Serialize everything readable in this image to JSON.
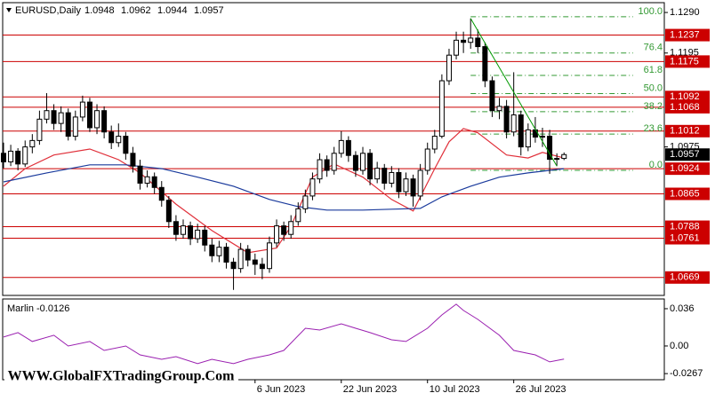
{
  "chart_data": {
    "type": "candlestick",
    "symbol": "EURUSD,Daily",
    "categories": [
      null,
      null,
      null,
      null,
      null,
      null,
      null,
      null,
      null,
      null,
      null,
      null,
      null,
      null,
      null,
      null,
      null,
      null,
      null,
      null,
      null,
      null,
      null,
      null,
      null,
      null,
      null,
      null,
      null,
      null,
      null,
      null,
      null,
      null,
      null,
      "6 Jun 2023",
      null,
      null,
      null,
      null,
      null,
      null,
      null,
      null,
      null,
      null,
      null,
      "22 Jun 2023",
      null,
      null,
      null,
      null,
      null,
      null,
      null,
      null,
      null,
      null,
      null,
      "10 Jul 2023",
      null,
      null,
      null,
      null,
      null,
      null,
      null,
      null,
      null,
      null,
      null,
      "26 Jul 2023",
      null,
      null,
      null,
      null,
      null,
      null,
      null
    ],
    "candles": [
      [
        1.096,
        1.0985,
        1.0925,
        1.094
      ],
      [
        1.094,
        1.098,
        1.093,
        1.0965
      ],
      [
        1.0965,
        1.0972,
        1.092,
        1.0935
      ],
      [
        1.0935,
        1.099,
        1.0928,
        1.0975
      ],
      [
        1.0975,
        1.1005,
        1.096,
        1.099
      ],
      [
        1.099,
        1.106,
        1.098,
        1.104
      ],
      [
        1.104,
        1.1101,
        1.103,
        1.106
      ],
      [
        1.106,
        1.1075,
        1.1015,
        1.103
      ],
      [
        1.103,
        1.107,
        1.101,
        1.1055
      ],
      [
        1.1055,
        1.1065,
        1.099,
        1.1
      ],
      [
        1.1,
        1.106,
        1.099,
        1.1045
      ],
      [
        1.1045,
        1.1095,
        1.1035,
        1.108
      ],
      [
        1.108,
        1.109,
        1.101,
        1.102
      ],
      [
        1.102,
        1.1075,
        1.1005,
        1.106
      ],
      [
        1.106,
        1.107,
        1.0995,
        1.101
      ],
      [
        1.101,
        1.1025,
        1.097,
        1.0985
      ],
      [
        1.0985,
        1.103,
        1.0975,
        1.1
      ],
      [
        1.1,
        1.101,
        1.0945,
        1.096
      ],
      [
        1.096,
        1.0975,
        1.0915,
        1.093
      ],
      [
        1.093,
        1.0945,
        1.0875,
        1.089
      ],
      [
        1.089,
        1.092,
        1.088,
        1.0905
      ],
      [
        1.0905,
        1.0915,
        1.0865,
        1.088
      ],
      [
        1.088,
        1.0895,
        1.0835,
        1.085
      ],
      [
        1.085,
        1.086,
        1.0785,
        1.08
      ],
      [
        1.08,
        1.0815,
        1.0755,
        1.077
      ],
      [
        1.077,
        1.0805,
        1.076,
        1.079
      ],
      [
        1.079,
        1.08,
        1.0745,
        1.076
      ],
      [
        1.076,
        1.0795,
        1.075,
        1.078
      ],
      [
        1.078,
        1.079,
        1.073,
        1.0745
      ],
      [
        1.0745,
        1.076,
        1.0705,
        1.072
      ],
      [
        1.072,
        1.0755,
        1.0705,
        1.074
      ],
      [
        1.074,
        1.075,
        1.069,
        1.0705
      ],
      [
        1.0705,
        1.0715,
        1.064,
        1.069
      ],
      [
        1.069,
        1.075,
        1.068,
        1.0735
      ],
      [
        1.0735,
        1.0745,
        1.0695,
        1.071
      ],
      [
        1.071,
        1.0725,
        1.0675,
        1.07
      ],
      [
        1.07,
        1.0715,
        1.0665,
        1.069
      ],
      [
        1.069,
        1.0765,
        1.068,
        1.075
      ],
      [
        1.075,
        1.0805,
        1.074,
        1.079
      ],
      [
        1.079,
        1.08,
        1.0755,
        1.077
      ],
      [
        1.077,
        1.0815,
        1.076,
        1.08
      ],
      [
        1.08,
        1.0845,
        1.079,
        1.083
      ],
      [
        1.083,
        1.0875,
        1.082,
        1.086
      ],
      [
        1.086,
        1.0915,
        1.085,
        1.09
      ],
      [
        1.09,
        1.096,
        1.089,
        1.0945
      ],
      [
        1.0945,
        1.0955,
        1.0905,
        1.092
      ],
      [
        1.092,
        1.0975,
        1.091,
        1.096
      ],
      [
        1.096,
        1.1012,
        1.095,
        1.099
      ],
      [
        1.099,
        1.1,
        1.094,
        1.0955
      ],
      [
        1.0955,
        1.0965,
        1.0905,
        1.092
      ],
      [
        1.092,
        1.0975,
        1.091,
        1.096
      ],
      [
        1.096,
        1.097,
        1.0885,
        1.09
      ],
      [
        1.09,
        1.094,
        1.089,
        1.0925
      ],
      [
        1.0925,
        1.0935,
        1.0875,
        1.089
      ],
      [
        1.089,
        1.093,
        1.088,
        1.0915
      ],
      [
        1.0915,
        1.0925,
        1.0855,
        1.087
      ],
      [
        1.087,
        1.0915,
        1.086,
        1.09
      ],
      [
        1.09,
        1.091,
        1.0835,
        1.086
      ],
      [
        1.086,
        1.0935,
        1.085,
        1.092
      ],
      [
        1.092,
        1.0985,
        1.091,
        1.097
      ],
      [
        1.097,
        1.1015,
        1.096,
        1.1
      ],
      [
        1.1,
        1.1145,
        1.0995,
        1.113
      ],
      [
        1.113,
        1.1205,
        1.112,
        1.119
      ],
      [
        1.119,
        1.1245,
        1.118,
        1.1225
      ],
      [
        1.1225,
        1.1245,
        1.1195,
        1.122
      ],
      [
        1.122,
        1.1276,
        1.1205,
        1.123
      ],
      [
        1.123,
        1.125,
        1.1195,
        1.121
      ],
      [
        1.121,
        1.122,
        1.1115,
        1.113
      ],
      [
        1.113,
        1.114,
        1.1045,
        1.106
      ],
      [
        1.106,
        1.109,
        1.104,
        1.107
      ],
      [
        1.107,
        1.1085,
        1.0995,
        1.101
      ],
      [
        1.101,
        1.115,
        1.1,
        1.105
      ],
      [
        1.105,
        1.106,
        1.0955,
        1.0975
      ],
      [
        1.0975,
        1.103,
        1.0965,
        1.1015
      ],
      [
        1.1015,
        1.1045,
        1.0985,
        1.0998
      ],
      [
        1.0998,
        1.102,
        1.0975,
        1.1
      ],
      [
        1.1,
        1.1015,
        1.0912,
        1.0946
      ],
      [
        1.0946,
        1.096,
        1.093,
        1.0948
      ],
      [
        1.0948,
        1.0962,
        1.0944,
        1.0957
      ]
    ],
    "candle_colors": {
      "up": "#ffffff",
      "down": "#000000"
    },
    "ylim": [
      1.0627,
      1.1313
    ],
    "yticks": [
      {
        "value": 1.129,
        "label": "1.1290"
      },
      1.1195,
      1.0975
    ],
    "levels": {
      "color": "#cc0000",
      "values": [
        1.1237,
        1.1175,
        1.1092,
        1.1068,
        1.1012,
        1.0924,
        1.0865,
        1.0788,
        1.0761,
        1.0669
      ]
    },
    "fib": {
      "color": "#339933",
      "start": 65,
      "high": 1.128,
      "low": 1.092,
      "levels": [
        {
          "value": 100,
          "label": "100.0"
        },
        76.4,
        61.8,
        {
          "value": 50,
          "label": "50.0"
        },
        38.2,
        23.6,
        {
          "value": 0,
          "label": "0.0"
        }
      ]
    },
    "trendline": {
      "color": "#009900",
      "x": [
        65,
        77
      ],
      "values": [
        1.1276,
        1.093
      ]
    },
    "series": [
      {
        "color": "#e0303a",
        "x": [
          0,
          3,
          7,
          12,
          16,
          19,
          24,
          29,
          34,
          38,
          40,
          43,
          46,
          50,
          54,
          57,
          60,
          62,
          64,
          66,
          70,
          73,
          75,
          78
        ],
        "values": [
          1.0883,
          1.0924,
          1.0956,
          1.097,
          1.0945,
          1.0914,
          1.0841,
          1.0779,
          1.0727,
          1.0738,
          1.0789,
          1.0904,
          1.0935,
          1.0904,
          1.0852,
          1.0825,
          1.0924,
          1.0987,
          1.1018,
          1.1008,
          1.0956,
          1.0949,
          1.0962,
          1.0949
        ]
      },
      {
        "color": "#1a3a9c",
        "x": [
          0,
          6,
          12,
          17,
          22,
          27,
          32,
          37,
          41,
          45,
          50,
          54,
          58,
          61,
          65,
          69,
          73,
          78
        ],
        "values": [
          1.0893,
          1.0914,
          1.0933,
          1.0933,
          1.0924,
          1.0904,
          1.0883,
          1.0852,
          1.0835,
          1.0827,
          1.0827,
          1.0829,
          1.0831,
          1.0858,
          1.0883,
          1.0904,
          1.0914,
          1.0924
        ]
      }
    ],
    "indicator": {
      "type": "line",
      "title": "Marlin -0.0126",
      "color": "#9a1fb0",
      "x": [
        0,
        2,
        4,
        7,
        9,
        12,
        14,
        17,
        19,
        22,
        24,
        27,
        29,
        32,
        34,
        37,
        39,
        42,
        44,
        47,
        49,
        51,
        54,
        56,
        59,
        61,
        63,
        64,
        66,
        69,
        71,
        74,
        76,
        78
      ],
      "values": [
        0.0086,
        0.0129,
        0.0043,
        0.0103,
        0,
        0.0043,
        -0.0043,
        0,
        -0.0086,
        -0.0129,
        -0.0103,
        -0.0171,
        -0.0129,
        -0.0171,
        -0.0129,
        -0.0086,
        -0.0043,
        0.0171,
        0.0154,
        0.0214,
        0.0171,
        0.0129,
        0.006,
        0.0043,
        0.0171,
        0.03,
        0.0403,
        0.0343,
        0.0257,
        0.0103,
        -0.0043,
        -0.0086,
        -0.0154,
        -0.0126
      ],
      "ylim": [
        -0.0326,
        0.0454
      ],
      "yticks": [
        0.036,
        {
          "value": 0,
          "label": "0.00"
        },
        -0.0267
      ]
    },
    "watermark": "WWW.GlobalFXTradingGroup.Com"
  }
}
